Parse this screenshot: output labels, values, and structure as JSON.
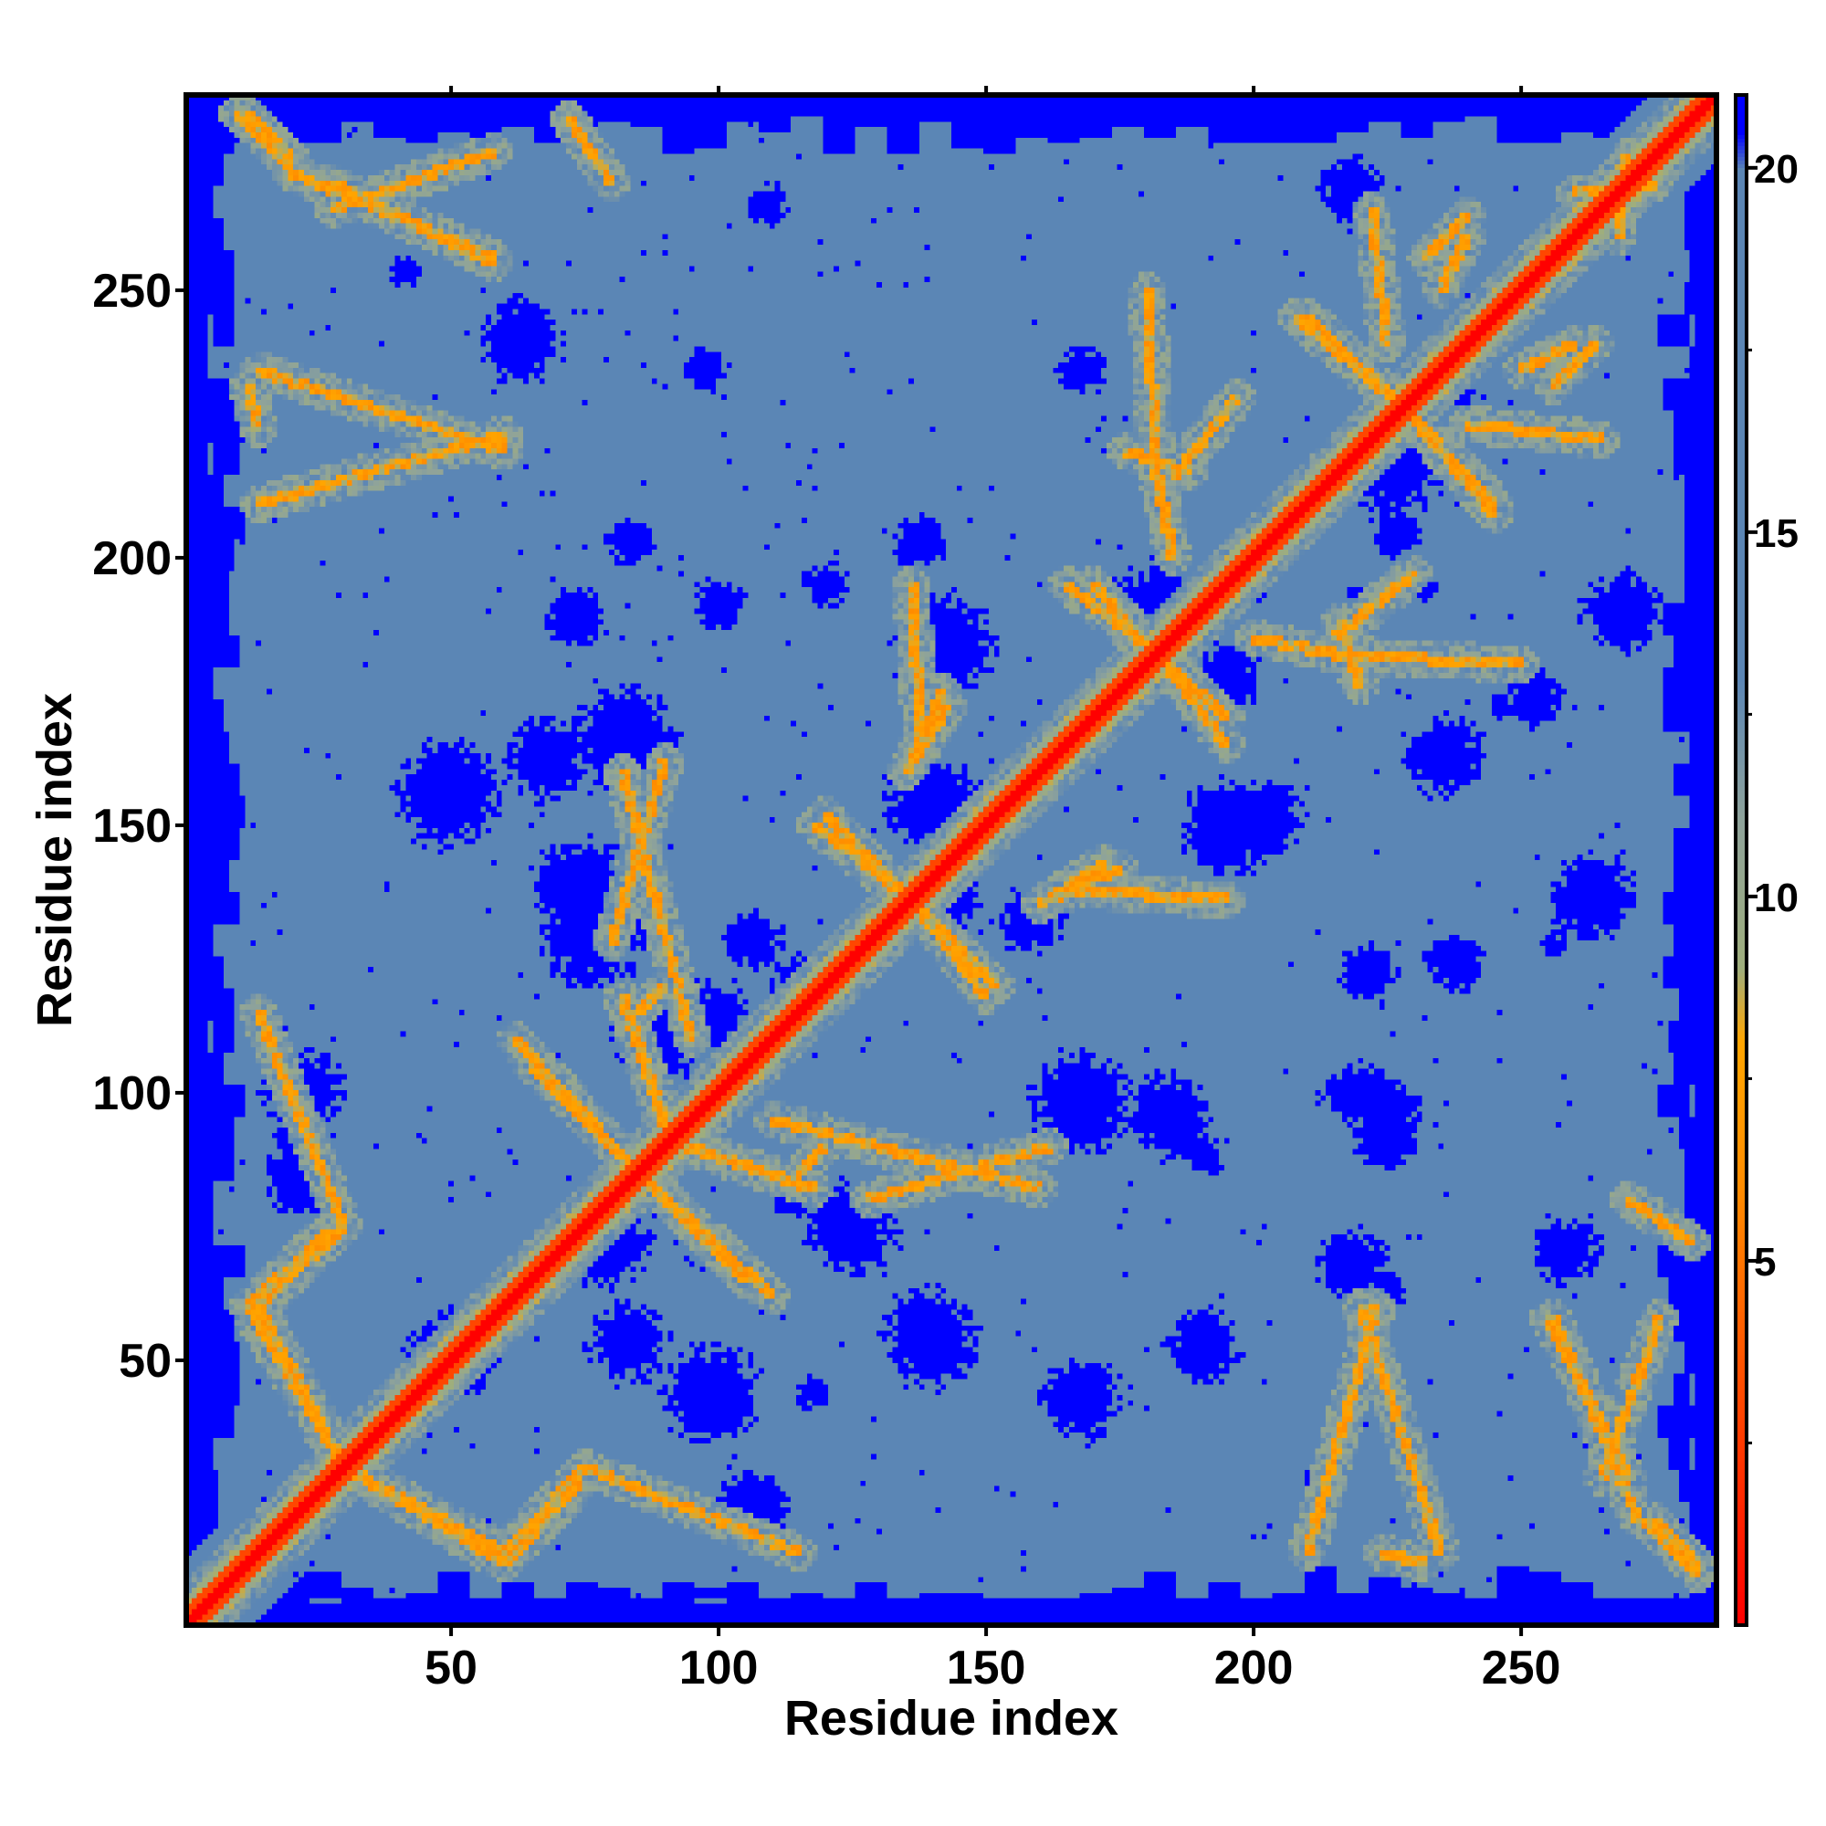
{
  "chart_data": {
    "type": "heatmap",
    "title": "",
    "xlabel": "Residue index",
    "ylabel": "Residue index",
    "xlim": [
      1,
      286
    ],
    "ylim": [
      1,
      286
    ],
    "x_ticks": [
      50,
      100,
      150,
      200,
      250
    ],
    "y_ticks": [
      50,
      100,
      150,
      200,
      250
    ],
    "x_tick_labels": [
      "50",
      "100",
      "150",
      "200",
      "250"
    ],
    "y_tick_labels": [
      "50",
      "100",
      "150",
      "200",
      "250"
    ],
    "colorbar": {
      "range": [
        0,
        21
      ],
      "ticks": [
        5,
        10,
        15,
        20
      ],
      "tick_labels": [
        "5",
        "10",
        "15",
        "20"
      ],
      "stops": [
        {
          "value": 0,
          "color": "#ff0000"
        },
        {
          "value": 6,
          "color": "#ff8c00"
        },
        {
          "value": 8,
          "color": "#ffa500"
        },
        {
          "value": 9,
          "color": "#9fae7c"
        },
        {
          "value": 11,
          "color": "#8fa39a"
        },
        {
          "value": 13,
          "color": "#5b86b5"
        },
        {
          "value": 20,
          "color": "#5b86b5"
        },
        {
          "value": 20.5,
          "color": "#0000ff"
        },
        {
          "value": 21,
          "color": "#0000ff"
        }
      ]
    },
    "matrix_description_values": {
      "diagonal_distance": 0,
      "background_distance": 18,
      "far_distance": 21,
      "contact_features": [
        {
          "x_from": 10,
          "y_from": 283,
          "x_to": 20,
          "y_to": 273
        },
        {
          "x_from": 20,
          "y_from": 272,
          "x_to": 58,
          "y_to": 256
        },
        {
          "x_from": 12,
          "y_from": 232,
          "x_to": 14,
          "y_to": 224
        },
        {
          "x_from": 12,
          "y_from": 60,
          "x_to": 27,
          "y_to": 74
        },
        {
          "x_from": 12,
          "y_from": 60,
          "x_to": 30,
          "y_to": 30
        },
        {
          "x_from": 30,
          "y_from": 30,
          "x_to": 60,
          "y_to": 14
        },
        {
          "x_from": 60,
          "y_from": 14,
          "x_to": 75,
          "y_to": 30
        },
        {
          "x_from": 75,
          "y_from": 30,
          "x_to": 115,
          "y_to": 14
        },
        {
          "x_from": 53,
          "y_from": 55,
          "x_to": 45,
          "y_to": 47
        },
        {
          "x_from": 85,
          "y_from": 85,
          "x_to": 110,
          "y_to": 62
        },
        {
          "x_from": 85,
          "y_from": 85,
          "x_to": 65,
          "y_to": 105
        },
        {
          "x_from": 94,
          "y_from": 90,
          "x_to": 118,
          "y_to": 82
        },
        {
          "x_from": 110,
          "y_from": 95,
          "x_to": 160,
          "y_to": 82
        },
        {
          "x_from": 85,
          "y_from": 115,
          "x_to": 90,
          "y_to": 120
        },
        {
          "x_from": 80,
          "y_from": 128,
          "x_to": 90,
          "y_to": 162
        },
        {
          "x_from": 136,
          "y_from": 136,
          "x_to": 150,
          "y_to": 118
        },
        {
          "x_from": 136,
          "y_from": 136,
          "x_to": 120,
          "y_to": 152
        },
        {
          "x_from": 135,
          "y_from": 160,
          "x_to": 143,
          "y_to": 172
        },
        {
          "x_from": 162,
          "y_from": 136,
          "x_to": 175,
          "y_to": 142
        },
        {
          "x_from": 165,
          "y_from": 138,
          "x_to": 195,
          "y_to": 136
        },
        {
          "x_from": 182,
          "y_from": 182,
          "x_to": 170,
          "y_to": 195
        },
        {
          "x_from": 182,
          "y_from": 182,
          "x_to": 195,
          "y_to": 165
        },
        {
          "x_from": 200,
          "y_from": 185,
          "x_to": 215,
          "y_to": 182
        },
        {
          "x_from": 215,
          "y_from": 182,
          "x_to": 250,
          "y_to": 180
        },
        {
          "x_from": 185,
          "y_from": 215,
          "x_to": 197,
          "y_to": 230
        },
        {
          "x_from": 176,
          "y_from": 220,
          "x_to": 188,
          "y_to": 216
        },
        {
          "x_from": 228,
          "y_from": 228,
          "x_to": 210,
          "y_to": 245
        },
        {
          "x_from": 228,
          "y_from": 228,
          "x_to": 245,
          "y_to": 208
        },
        {
          "x_from": 232,
          "y_from": 256,
          "x_to": 240,
          "y_to": 264
        },
        {
          "x_from": 250,
          "y_from": 235,
          "x_to": 260,
          "y_to": 240
        },
        {
          "x_from": 240,
          "y_from": 225,
          "x_to": 265,
          "y_to": 222
        },
        {
          "x_from": 260,
          "y_from": 268,
          "x_to": 275,
          "y_to": 270
        },
        {
          "x_from": 270,
          "y_from": 80,
          "x_to": 282,
          "y_to": 72
        },
        {
          "x_from": 255,
          "y_from": 58,
          "x_to": 270,
          "y_to": 28
        },
        {
          "x_from": 276,
          "y_from": 58,
          "x_to": 265,
          "y_to": 28
        },
        {
          "x_from": 275,
          "y_from": 20,
          "x_to": 283,
          "y_to": 12
        },
        {
          "x_from": 220,
          "y_from": 60,
          "x_to": 235,
          "y_to": 14
        },
        {
          "x_from": 223,
          "y_from": 60,
          "x_to": 210,
          "y_to": 14
        }
      ]
    }
  }
}
